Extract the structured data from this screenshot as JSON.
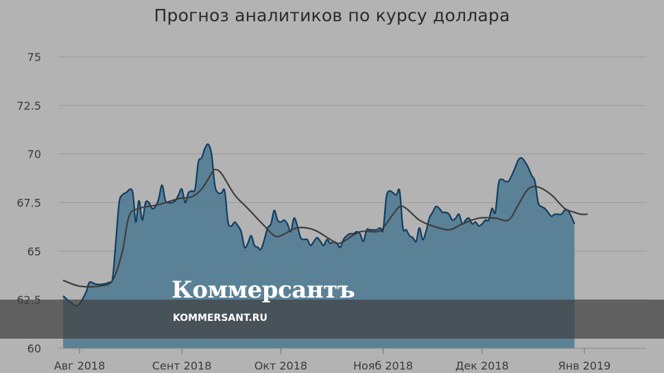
{
  "title": "Прогноз аналитиков по курсу доллара",
  "watermark": {
    "logo": "Коммерсантъ",
    "url": "KOMMERSANT.RU"
  },
  "colors": {
    "background": "#b3b3b3",
    "area_fill": "#4f7a93",
    "area_line": "#0f3d63",
    "trend_line": "#3d3d3d",
    "grid": "#9a9a9a"
  },
  "chart_data": {
    "type": "area",
    "title": "Прогноз аналитиков по курсу доллара",
    "xlabel": "",
    "ylabel": "",
    "ylim": [
      60,
      75
    ],
    "yticks": [
      "60",
      "62.5",
      "65",
      "67.5",
      "70",
      "72.5",
      "75"
    ],
    "xticks": [
      {
        "label": "Авг 2018",
        "x": 0
      },
      {
        "label": "Сент 2018",
        "x": 31
      },
      {
        "label": "Окт 2018",
        "x": 61
      },
      {
        "label": "Нояб 2018",
        "x": 92
      },
      {
        "label": "Дек 2018",
        "x": 122
      },
      {
        "label": "Янв 2019",
        "x": 153
      }
    ],
    "x_unit": "days since 1 Aug 2018",
    "grid": true,
    "series": [
      {
        "kind": "area",
        "points": [
          [
            -5,
            62.7
          ],
          [
            -3,
            62.4
          ],
          [
            -1,
            62.2
          ],
          [
            0,
            62.3
          ],
          [
            2,
            62.9
          ],
          [
            3,
            63.4
          ],
          [
            5,
            63.3
          ],
          [
            7,
            63.3
          ],
          [
            9,
            63.4
          ],
          [
            10,
            63.6
          ],
          [
            11,
            65.5
          ],
          [
            12,
            67.5
          ],
          [
            13,
            67.9
          ],
          [
            14,
            68.0
          ],
          [
            16,
            68.1
          ],
          [
            17,
            66.5
          ],
          [
            18,
            67.6
          ],
          [
            19,
            66.6
          ],
          [
            20,
            67.5
          ],
          [
            21,
            67.5
          ],
          [
            22,
            67.2
          ],
          [
            23,
            67.3
          ],
          [
            24,
            67.7
          ],
          [
            25,
            68.4
          ],
          [
            26,
            67.6
          ],
          [
            27,
            67.5
          ],
          [
            28,
            67.5
          ],
          [
            29,
            67.6
          ],
          [
            30,
            67.9
          ],
          [
            31,
            68.2
          ],
          [
            32,
            67.5
          ],
          [
            33,
            68.0
          ],
          [
            34,
            68.1
          ],
          [
            35,
            68.2
          ],
          [
            36,
            69.6
          ],
          [
            37,
            69.8
          ],
          [
            38,
            70.3
          ],
          [
            39,
            70.5
          ],
          [
            40,
            70.0
          ],
          [
            41,
            68.4
          ],
          [
            42,
            68.0
          ],
          [
            43,
            68.0
          ],
          [
            44,
            68.1
          ],
          [
            45,
            66.5
          ],
          [
            46,
            66.3
          ],
          [
            47,
            66.5
          ],
          [
            48,
            66.3
          ],
          [
            49,
            66.0
          ],
          [
            50,
            65.2
          ],
          [
            51,
            65.4
          ],
          [
            52,
            65.8
          ],
          [
            53,
            65.3
          ],
          [
            54,
            65.2
          ],
          [
            55,
            65.1
          ],
          [
            56,
            65.6
          ],
          [
            57,
            66.2
          ],
          [
            58,
            66.4
          ],
          [
            59,
            67.1
          ],
          [
            60,
            66.6
          ],
          [
            61,
            66.5
          ],
          [
            62,
            66.6
          ],
          [
            63,
            66.4
          ],
          [
            64,
            66.0
          ],
          [
            65,
            66.7
          ],
          [
            66,
            66.3
          ],
          [
            67,
            65.7
          ],
          [
            68,
            65.6
          ],
          [
            69,
            65.6
          ],
          [
            70,
            65.3
          ],
          [
            71,
            65.5
          ],
          [
            72,
            65.7
          ],
          [
            73,
            65.5
          ],
          [
            74,
            65.3
          ],
          [
            75,
            65.6
          ],
          [
            76,
            65.4
          ],
          [
            77,
            65.5
          ],
          [
            78,
            65.4
          ],
          [
            79,
            65.2
          ],
          [
            80,
            65.6
          ],
          [
            81,
            65.8
          ],
          [
            82,
            65.9
          ],
          [
            83,
            65.9
          ],
          [
            84,
            66.0
          ],
          [
            85,
            65.9
          ],
          [
            86,
            65.5
          ],
          [
            87,
            66.1
          ],
          [
            88,
            66.1
          ],
          [
            90,
            66.1
          ],
          [
            91,
            66.2
          ],
          [
            92,
            66.1
          ],
          [
            93,
            67.8
          ],
          [
            94,
            68.1
          ],
          [
            95,
            68.0
          ],
          [
            96,
            67.9
          ],
          [
            97,
            68.1
          ],
          [
            98,
            66.2
          ],
          [
            99,
            66.1
          ],
          [
            100,
            65.8
          ],
          [
            101,
            65.7
          ],
          [
            102,
            65.5
          ],
          [
            103,
            66.2
          ],
          [
            104,
            65.6
          ],
          [
            105,
            66.0
          ],
          [
            106,
            66.7
          ],
          [
            107,
            67.0
          ],
          [
            108,
            67.3
          ],
          [
            109,
            67.2
          ],
          [
            110,
            67.0
          ],
          [
            111,
            67.0
          ],
          [
            112,
            66.9
          ],
          [
            113,
            66.6
          ],
          [
            114,
            66.7
          ],
          [
            115,
            66.9
          ],
          [
            116,
            66.4
          ],
          [
            117,
            66.6
          ],
          [
            118,
            66.7
          ],
          [
            119,
            66.4
          ],
          [
            120,
            66.5
          ],
          [
            121,
            66.3
          ],
          [
            122,
            66.4
          ],
          [
            123,
            66.6
          ],
          [
            124,
            66.6
          ],
          [
            125,
            67.2
          ],
          [
            126,
            67.0
          ],
          [
            127,
            68.5
          ],
          [
            128,
            68.7
          ],
          [
            129,
            68.6
          ],
          [
            130,
            68.6
          ],
          [
            131,
            68.9
          ],
          [
            132,
            69.3
          ],
          [
            133,
            69.7
          ],
          [
            134,
            69.8
          ],
          [
            135,
            69.6
          ],
          [
            136,
            69.3
          ],
          [
            137,
            68.9
          ],
          [
            138,
            68.6
          ],
          [
            139,
            67.5
          ],
          [
            140,
            67.3
          ],
          [
            141,
            67.2
          ],
          [
            142,
            67.0
          ],
          [
            143,
            66.8
          ],
          [
            144,
            66.9
          ],
          [
            145,
            66.9
          ],
          [
            146,
            66.9
          ],
          [
            147,
            67.1
          ],
          [
            148,
            67.1
          ],
          [
            149,
            66.8
          ],
          [
            150,
            66.4
          ]
        ]
      },
      {
        "kind": "line",
        "points": [
          [
            -5,
            63.5
          ],
          [
            0,
            63.2
          ],
          [
            6,
            63.2
          ],
          [
            10,
            63.5
          ],
          [
            13,
            65.0
          ],
          [
            15,
            66.8
          ],
          [
            18,
            67.2
          ],
          [
            24,
            67.4
          ],
          [
            30,
            67.7
          ],
          [
            34,
            67.8
          ],
          [
            37,
            68.2
          ],
          [
            40,
            69.0
          ],
          [
            41,
            69.2
          ],
          [
            43,
            69.0
          ],
          [
            47,
            67.9
          ],
          [
            51,
            67.2
          ],
          [
            56,
            66.3
          ],
          [
            59,
            65.8
          ],
          [
            61,
            65.8
          ],
          [
            66,
            66.2
          ],
          [
            71,
            66.1
          ],
          [
            76,
            65.6
          ],
          [
            78,
            65.4
          ],
          [
            80,
            65.5
          ],
          [
            85,
            66.0
          ],
          [
            90,
            66.0
          ],
          [
            92,
            66.2
          ],
          [
            95,
            66.9
          ],
          [
            97,
            67.3
          ],
          [
            99,
            67.2
          ],
          [
            103,
            66.6
          ],
          [
            107,
            66.3
          ],
          [
            112,
            66.1
          ],
          [
            116,
            66.4
          ],
          [
            121,
            66.7
          ],
          [
            126,
            66.7
          ],
          [
            130,
            66.6
          ],
          [
            133,
            67.4
          ],
          [
            136,
            68.2
          ],
          [
            139,
            68.3
          ],
          [
            143,
            67.9
          ],
          [
            147,
            67.2
          ],
          [
            150,
            67.0
          ],
          [
            154,
            66.9
          ],
          [
            152,
            66.9
          ]
        ]
      }
    ]
  }
}
